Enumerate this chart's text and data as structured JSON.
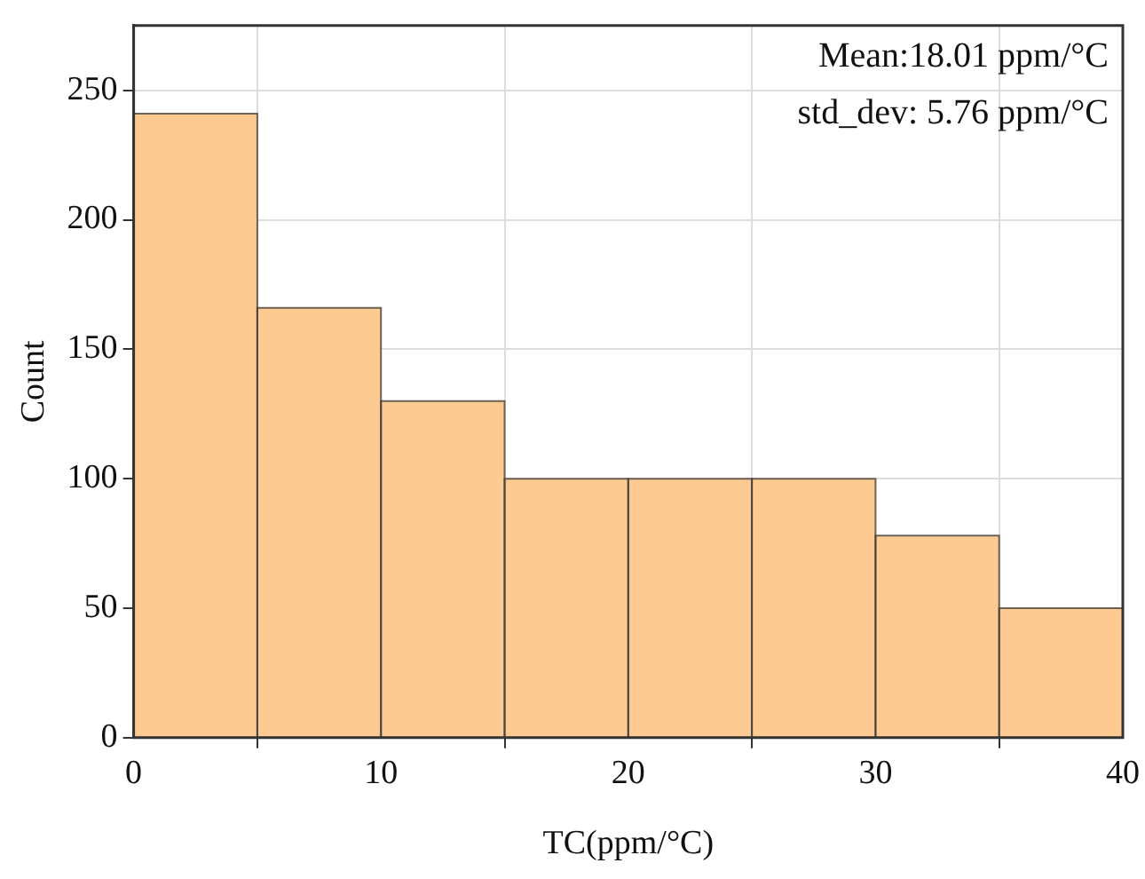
{
  "chart_data": {
    "type": "histogram",
    "xlabel": "TC(ppm/°C)",
    "ylabel": "Count",
    "bins": [
      0,
      5,
      10,
      15,
      20,
      25,
      30,
      35,
      40
    ],
    "values": [
      241,
      166,
      130,
      100,
      100,
      100,
      78,
      50
    ],
    "color": "#fdcb91",
    "xlim": [
      0,
      40
    ],
    "xticks": [
      0,
      10,
      20,
      30,
      40
    ],
    "ylim": [
      0,
      275
    ],
    "yticks": [
      0,
      50,
      100,
      150,
      200,
      250
    ],
    "grid": true,
    "annotations": [
      "Mean:18.01 ppm/°C",
      "std_dev: 5.76 ppm/°C"
    ]
  }
}
